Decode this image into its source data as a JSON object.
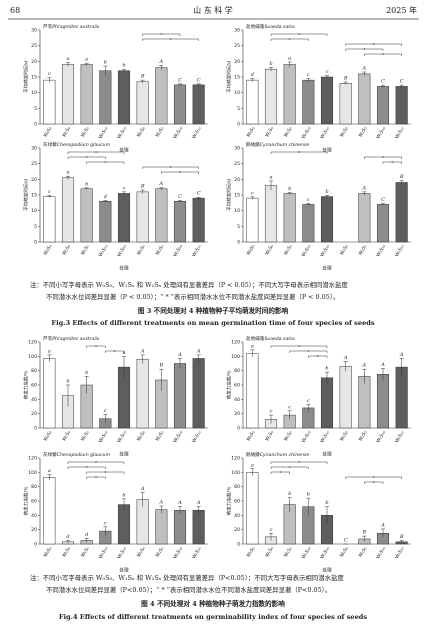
{
  "header": {
    "page": "68",
    "journal": "山 东 科 学",
    "year": "2025 年"
  },
  "figure3": {
    "note": [
      "注：不同小写字母表示 W₀S₀、W₁Sₓ 和 W₂Sₓ 处理间有显著差异（P < 0.05）；不同大写字母表示相同潜水盐度",
      "不同潜水水位间差异显著（P < 0.05）；“ * ”表示相同潜水水位不同潜水盐度间差异显著（P < 0.05）。"
    ],
    "caption_cn": "图 3   不同处理对 4 种植物种子平均萌发时间的影响",
    "caption_en": "Fig.3   Effects of different treatments on mean germination time of four species of seeds"
  },
  "figure4": {
    "note": [
      "注：不同小写字母表示 W₀S₀、W₁Sₓ 和 W₂Sₓ 处理间有显著差异（P<0.05）；不同大写字母表示相同潜水盐度",
      "不同潜水水位间差异显著（P<0.05）；“ * ”表示相同潜水水位不同潜水盐度间差异显著（P<0.05）。"
    ],
    "caption_cn": "图 4   不同处理对 4 种植物种子萌发力指数的影响",
    "caption_en": "Fig.4   Effects of different treatments on germinability index of four species of seeds"
  },
  "chart_data": [
    {
      "type": "bar",
      "title": "芦苇",
      "title_latin": "Phragmites australis",
      "ylabel": "平均萌发时间/d",
      "xlabel": "处理",
      "categories": [
        "W₀S₀",
        "W₁S₀",
        "W₁S₅",
        "W₁S₁₀",
        "W₁S₁₅",
        "W₂S₀",
        "W₂S₅",
        "W₂S₁₀",
        "W₂S₁₅"
      ],
      "values": [
        14,
        19,
        19,
        17,
        17,
        13.5,
        18,
        12.5,
        12.5
      ],
      "errors": [
        0.8,
        0.6,
        0.4,
        1.5,
        0.5,
        0.5,
        0.7,
        0.3,
        0.3
      ],
      "letters": [
        "c",
        "a",
        "a",
        "b",
        "b",
        "B",
        "A",
        "C",
        "C"
      ],
      "colors": [
        "#ffffff",
        "#e6e6e6",
        "#bfbfbf",
        "#8c8c8c",
        "#5e5e5e",
        "#e6e6e6",
        "#bfbfbf",
        "#8c8c8c",
        "#5e5e5e"
      ],
      "brackets": [
        {
          "from": 5,
          "to": 7,
          "label": "*"
        },
        {
          "from": 5,
          "to": 8,
          "label": "*"
        }
      ],
      "ylim": [
        0,
        30
      ],
      "yticks": [
        0,
        5,
        10,
        15,
        20,
        25,
        30
      ]
    },
    {
      "type": "bar",
      "title": "盐地碱蓬",
      "title_latin": "Suaeda salsa",
      "ylabel": "平均萌发时间/d",
      "xlabel": "处理",
      "categories": [
        "W₀S₀",
        "W₁S₀",
        "W₁S₅",
        "W₁S₁₀",
        "W₁S₁₅",
        "W₂S₀",
        "W₂S₅",
        "W₂S₁₀",
        "W₂S₁₅"
      ],
      "values": [
        14,
        17.5,
        19,
        14,
        15,
        13,
        16,
        12,
        12
      ],
      "errors": [
        0.5,
        0.6,
        0.8,
        0.5,
        0.5,
        0.4,
        0.6,
        0.4,
        0.4
      ],
      "letters": [
        "d",
        "b",
        "a",
        "c",
        "c",
        "B",
        "A",
        "C",
        "C"
      ],
      "colors": [
        "#ffffff",
        "#e6e6e6",
        "#bfbfbf",
        "#8c8c8c",
        "#5e5e5e",
        "#e6e6e6",
        "#bfbfbf",
        "#8c8c8c",
        "#5e5e5e"
      ],
      "brackets": [
        {
          "from": 1,
          "to": 4,
          "label": "*"
        },
        {
          "from": 1,
          "to": 3,
          "label": "*"
        },
        {
          "from": 5,
          "to": 8,
          "label": "*"
        },
        {
          "from": 5,
          "to": 7,
          "label": "*"
        },
        {
          "from": 6,
          "to": 8,
          "label": "*"
        }
      ],
      "ylim": [
        0,
        30
      ],
      "yticks": [
        0,
        5,
        10,
        15,
        20,
        25,
        30
      ]
    },
    {
      "type": "bar",
      "title": "灰绿藜",
      "title_latin": "Chenopodium glaucum",
      "ylabel": "平均萌发时间/d",
      "xlabel": "处理",
      "categories": [
        "W₀S₀",
        "W₁S₀",
        "W₁S₅",
        "W₁S₁₀",
        "W₁S₁₅",
        "W₂S₀",
        "W₂S₅",
        "W₂S₁₀",
        "W₂S₁₅"
      ],
      "values": [
        14.5,
        20.5,
        17,
        13,
        15.5,
        16,
        17,
        13,
        14
      ],
      "errors": [
        0.4,
        0.5,
        0.3,
        0.3,
        0.5,
        0.6,
        0.4,
        0.3,
        0.3
      ],
      "letters": [
        "c",
        "a",
        "b",
        "d",
        "c",
        "B",
        "A",
        "C",
        "C"
      ],
      "colors": [
        "#ffffff",
        "#e6e6e6",
        "#bfbfbf",
        "#8c8c8c",
        "#5e5e5e",
        "#e6e6e6",
        "#bfbfbf",
        "#8c8c8c",
        "#5e5e5e"
      ],
      "brackets": [
        {
          "from": 1,
          "to": 4,
          "label": "*"
        },
        {
          "from": 1,
          "to": 3,
          "label": "*"
        },
        {
          "from": 2,
          "to": 4,
          "label": "*"
        },
        {
          "from": 5,
          "to": 8,
          "label": "*"
        },
        {
          "from": 6,
          "to": 8,
          "label": "*"
        }
      ],
      "ylim": [
        0,
        30
      ],
      "yticks": [
        0,
        5,
        10,
        15,
        20,
        25,
        30
      ]
    },
    {
      "type": "bar",
      "title": "鹅绒藤",
      "title_latin": "Cynanchum chinense",
      "ylabel": "平均萌发时间/d",
      "xlabel": "处理",
      "categories": [
        "W₀S₀",
        "W₁S₀",
        "W₁S₅",
        "W₁S₁₀",
        "W₁S₁₅",
        "W₂S₀",
        "W₂S₅",
        "W₂S₁₀",
        "W₂S₁₅"
      ],
      "values": [
        14,
        18,
        15.5,
        12,
        14.5,
        null,
        15.5,
        12,
        19
      ],
      "errors": [
        0.4,
        1.5,
        0.3,
        0.3,
        0.4,
        null,
        0.5,
        0.3,
        0.6
      ],
      "letters": [
        "c",
        "a",
        "b",
        "c",
        "b",
        null,
        "A",
        "C",
        "B"
      ],
      "colors": [
        "#ffffff",
        "#e6e6e6",
        "#bfbfbf",
        "#8c8c8c",
        "#5e5e5e",
        "#e6e6e6",
        "#bfbfbf",
        "#8c8c8c",
        "#5e5e5e"
      ],
      "brackets": [
        {
          "from": 1,
          "to": 4,
          "label": "*"
        },
        {
          "from": 6,
          "to": 8,
          "label": "*"
        },
        {
          "from": 7,
          "to": 8,
          "label": "*"
        }
      ],
      "ylim": [
        0,
        30
      ],
      "yticks": [
        0,
        5,
        10,
        15,
        20,
        25,
        30
      ]
    },
    {
      "type": "bar",
      "title": "芦苇",
      "title_latin": "Phragmites australis",
      "ylabel": "萌发力指数/%",
      "xlabel": "处理",
      "categories": [
        "W₀S₀",
        "W₁S₀",
        "W₁S₅",
        "W₁S₁₀",
        "W₁S₁₅",
        "W₂S₀",
        "W₂S₅",
        "W₂S₁₀",
        "W₂S₁₅"
      ],
      "values": [
        97,
        45,
        60,
        13,
        85,
        96,
        67,
        90,
        97
      ],
      "errors": [
        5,
        15,
        12,
        6,
        15,
        6,
        15,
        7,
        5
      ],
      "letters": [
        "a",
        "b",
        "b",
        "c",
        "a",
        "A",
        "B",
        "A",
        "A"
      ],
      "colors": [
        "#ffffff",
        "#e6e6e6",
        "#bfbfbf",
        "#8c8c8c",
        "#5e5e5e",
        "#e6e6e6",
        "#bfbfbf",
        "#8c8c8c",
        "#5e5e5e"
      ],
      "brackets": [
        {
          "from": 2,
          "to": 3,
          "label": "*"
        },
        {
          "from": 3,
          "to": 4,
          "label": "*"
        }
      ],
      "ylim": [
        0,
        120
      ],
      "yticks": [
        0,
        20,
        40,
        60,
        80,
        100,
        120
      ]
    },
    {
      "type": "bar",
      "title": "盐地碱蓬",
      "title_latin": "Suaeda salsa",
      "ylabel": "萌发力指数/%",
      "xlabel": "处理",
      "categories": [
        "W₀S₀",
        "W₁S₀",
        "W₁S₅",
        "W₁S₁₀",
        "W₁S₁₅",
        "W₂S₀",
        "W₂S₅",
        "W₂S₁₀",
        "W₂S₁₅"
      ],
      "values": [
        104,
        12,
        18,
        28,
        70,
        86,
        72,
        75,
        85
      ],
      "errors": [
        5,
        6,
        6,
        5,
        8,
        7,
        10,
        8,
        12
      ],
      "letters": [
        "a",
        "c",
        "c",
        "c",
        "b",
        "A",
        "A",
        "A",
        "A"
      ],
      "colors": [
        "#ffffff",
        "#e6e6e6",
        "#bfbfbf",
        "#8c8c8c",
        "#5e5e5e",
        "#e6e6e6",
        "#bfbfbf",
        "#8c8c8c",
        "#5e5e5e"
      ],
      "brackets": [
        {
          "from": 1,
          "to": 4,
          "label": "*"
        },
        {
          "from": 2,
          "to": 4,
          "label": "*"
        },
        {
          "from": 3,
          "to": 4,
          "label": "*"
        }
      ],
      "ylim": [
        0,
        120
      ],
      "yticks": [
        0,
        20,
        40,
        60,
        80,
        100,
        120
      ]
    },
    {
      "type": "bar",
      "title": "灰绿藜",
      "title_latin": "Chenopodium glaucum",
      "ylabel": "萌发力指数/%",
      "xlabel": "处理",
      "categories": [
        "W₀S₀",
        "W₁S₀",
        "W₁S₅",
        "W₁S₁₀",
        "W₁S₁₅",
        "W₂S₀",
        "W₂S₅",
        "W₂S₁₀",
        "W₂S₁₅"
      ],
      "values": [
        93,
        3,
        5,
        18,
        55,
        62,
        48,
        47,
        47
      ],
      "errors": [
        4,
        2,
        3,
        6,
        8,
        10,
        5,
        5,
        5
      ],
      "letters": [
        "a",
        "d",
        "d",
        "c",
        "b",
        "A",
        "A",
        "A",
        "A"
      ],
      "colors": [
        "#ffffff",
        "#e6e6e6",
        "#bfbfbf",
        "#8c8c8c",
        "#5e5e5e",
        "#e6e6e6",
        "#bfbfbf",
        "#8c8c8c",
        "#5e5e5e"
      ],
      "brackets": [
        {
          "from": 1,
          "to": 4,
          "label": "*"
        },
        {
          "from": 1,
          "to": 3,
          "label": "*"
        },
        {
          "from": 2,
          "to": 4,
          "label": "*"
        },
        {
          "from": 2,
          "to": 3,
          "label": "*"
        }
      ],
      "ylim": [
        0,
        120
      ],
      "yticks": [
        0,
        20,
        40,
        60,
        80,
        100,
        120
      ]
    },
    {
      "type": "bar",
      "title": "鹅绒藤",
      "title_latin": "Cynanchum chinense",
      "ylabel": "萌发力指数/%",
      "xlabel": "处理",
      "categories": [
        "W₀S₀",
        "W₁S₀",
        "W₁S₅",
        "W₁S₁₀",
        "W₁S₁₅",
        "W₂S₀",
        "W₂S₅",
        "W₂S₁₀",
        "W₂S₁₅"
      ],
      "values": [
        100,
        10,
        55,
        52,
        40,
        0,
        7,
        15,
        3
      ],
      "errors": [
        5,
        5,
        10,
        12,
        12,
        0,
        4,
        6,
        2
      ],
      "letters": [
        "a",
        "c",
        "b",
        "b",
        "b",
        "C",
        "B",
        "A",
        "B"
      ],
      "colors": [
        "#ffffff",
        "#e6e6e6",
        "#bfbfbf",
        "#8c8c8c",
        "#5e5e5e",
        "#e6e6e6",
        "#bfbfbf",
        "#8c8c8c",
        "#5e5e5e"
      ],
      "brackets": [
        {
          "from": 1,
          "to": 4,
          "label": "*"
        },
        {
          "from": 1,
          "to": 3,
          "label": "*"
        },
        {
          "from": 1,
          "to": 2,
          "label": "*"
        },
        {
          "from": 5,
          "to": 8,
          "label": "*"
        },
        {
          "from": 6,
          "to": 7,
          "label": "*"
        }
      ],
      "ylim": [
        0,
        120
      ],
      "yticks": [
        0,
        20,
        40,
        60,
        80,
        100,
        120
      ]
    }
  ]
}
